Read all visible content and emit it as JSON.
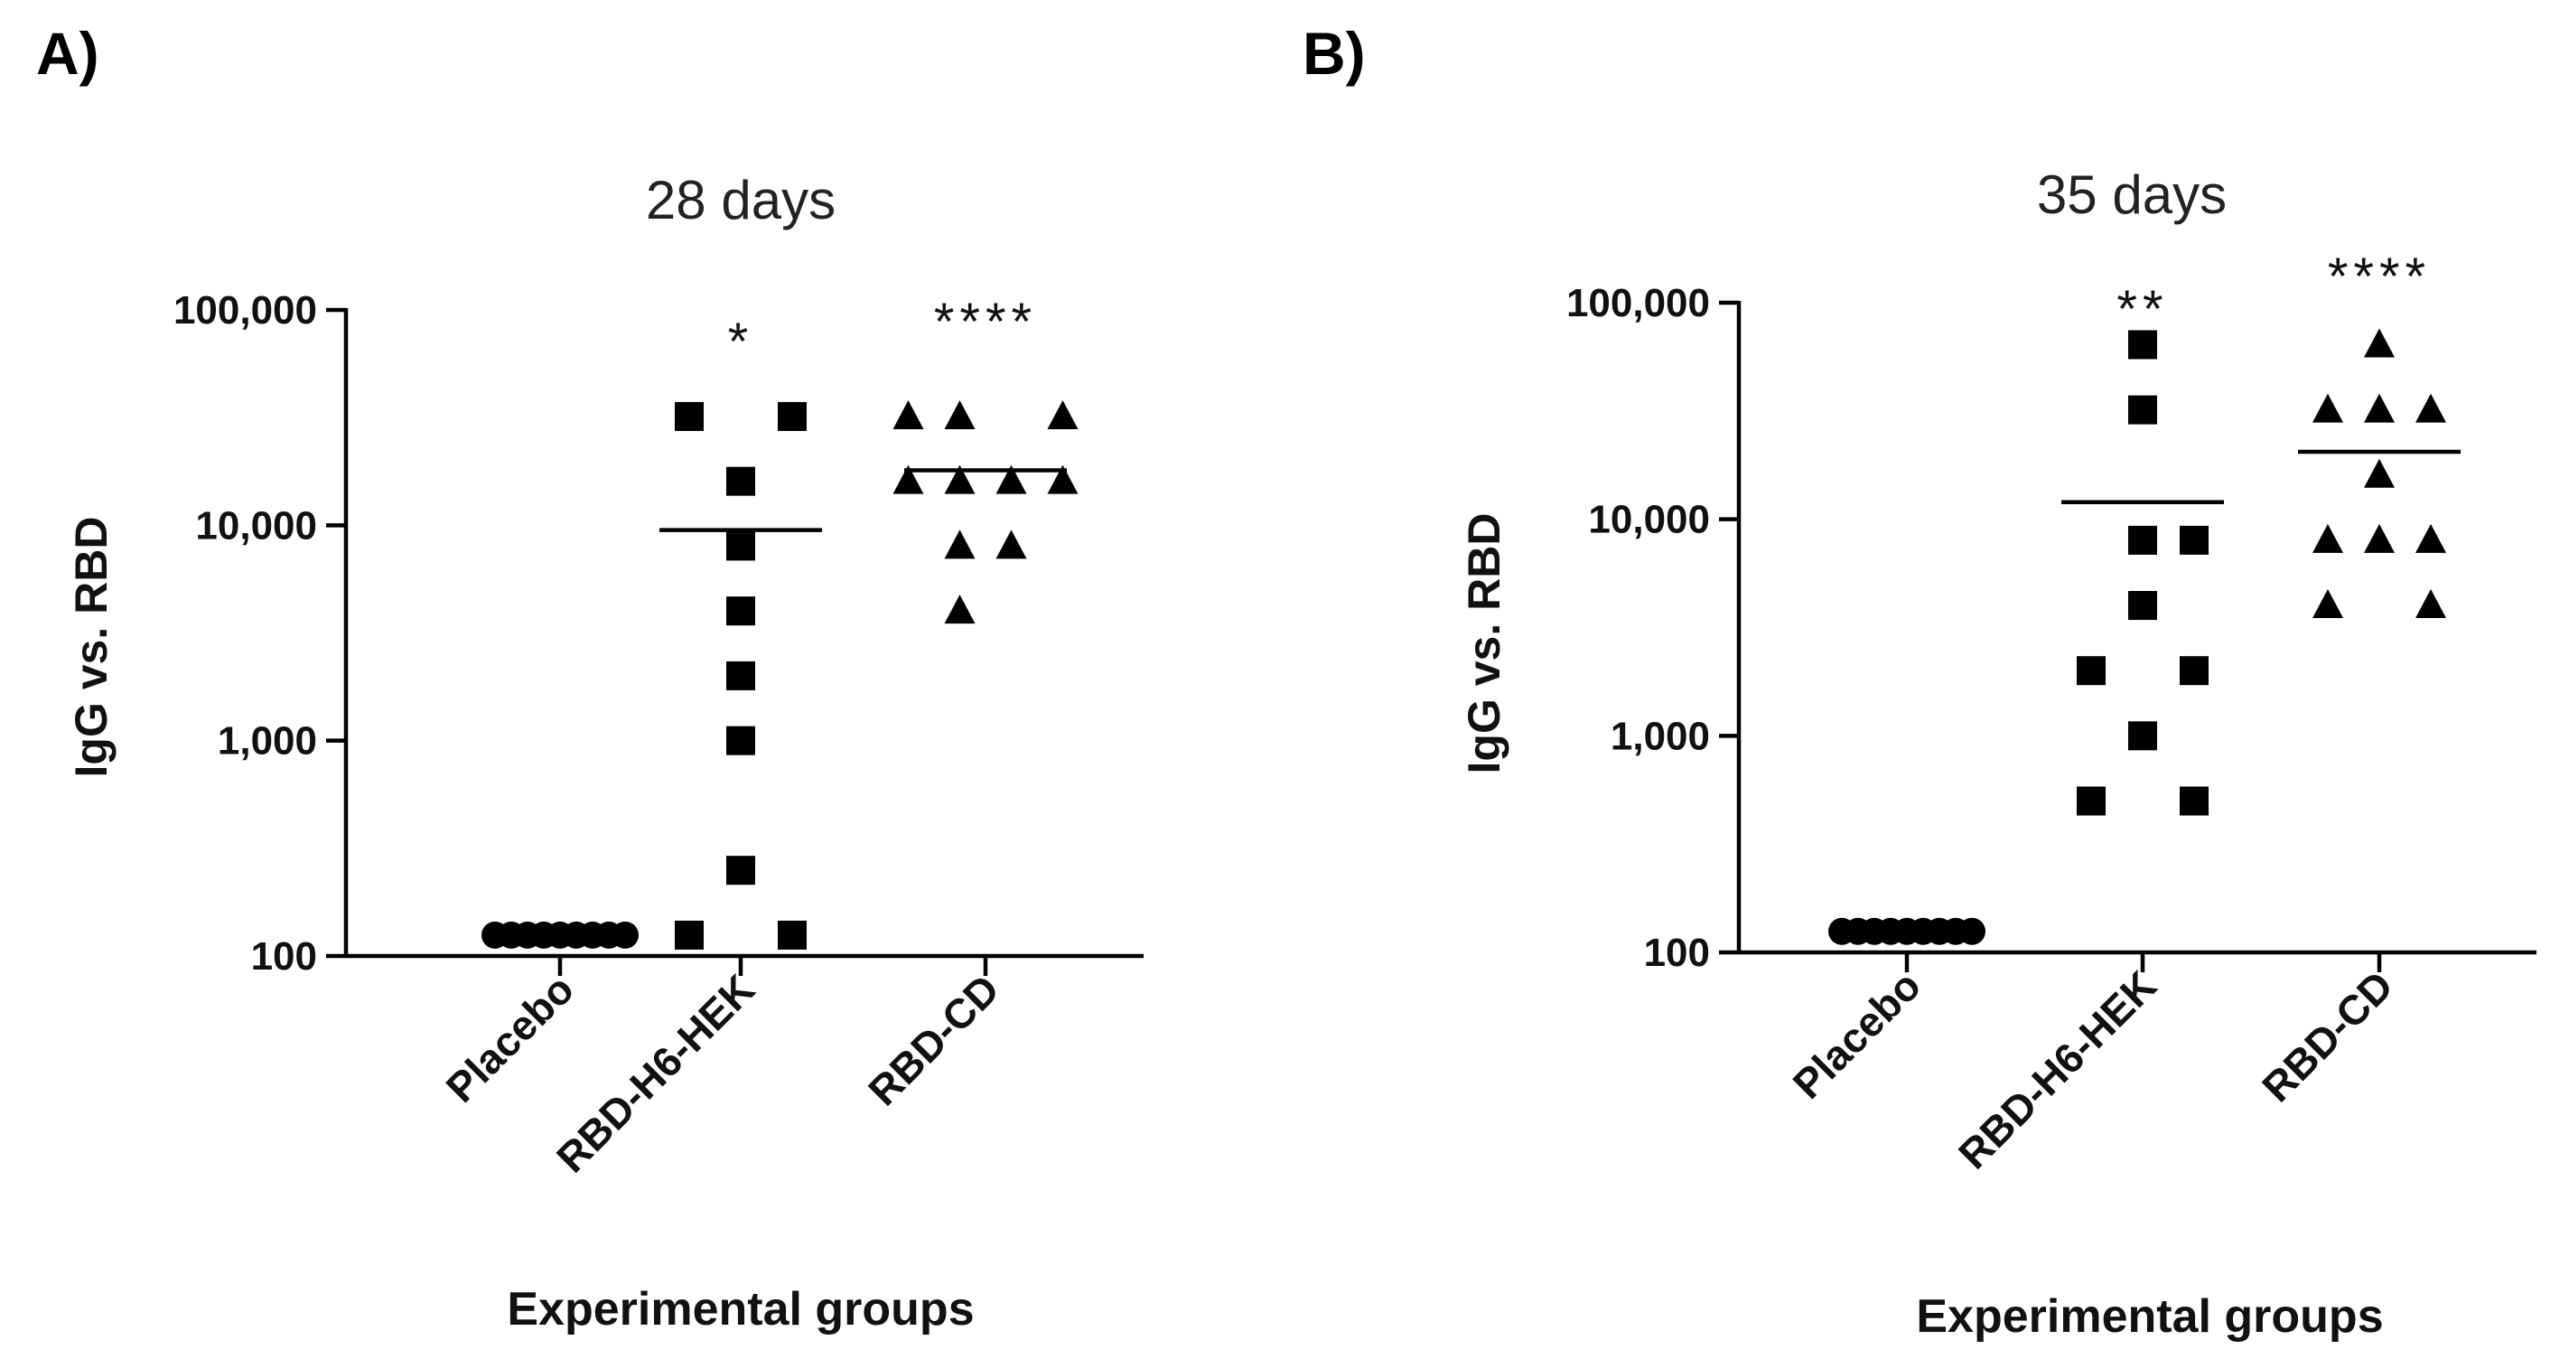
{
  "panels": [
    {
      "letter": "A)",
      "chart_data": {
        "type": "scatter",
        "title": "28 days",
        "ylabel": "IgG vs. RBD",
        "xlabel": "Experimental groups",
        "yscale": "log",
        "ylim": [
          100,
          100000
        ],
        "yticks": [
          100,
          1000,
          10000,
          100000
        ],
        "ytick_labels": [
          "100",
          "1,000",
          "10,000",
          "100,000"
        ],
        "categories": [
          "Placebo",
          "RBD-H6-HEK",
          "RBD-CD"
        ],
        "groups": [
          {
            "name": "Placebo",
            "marker": "circle",
            "points": [
              {
                "value": 125,
                "offset": -4
              },
              {
                "value": 125,
                "offset": -3
              },
              {
                "value": 125,
                "offset": -2
              },
              {
                "value": 125,
                "offset": -1
              },
              {
                "value": 125,
                "offset": 0
              },
              {
                "value": 125,
                "offset": 1
              },
              {
                "value": 125,
                "offset": 2
              },
              {
                "value": 125,
                "offset": 3
              },
              {
                "value": 125,
                "offset": 4
              }
            ],
            "mean": null,
            "significance": ""
          },
          {
            "name": "RBD-H6-HEK",
            "marker": "square",
            "points": [
              {
                "value": 32000,
                "offset": -1
              },
              {
                "value": 32000,
                "offset": 1
              },
              {
                "value": 16000,
                "offset": 0
              },
              {
                "value": 8000,
                "offset": 0
              },
              {
                "value": 4000,
                "offset": 0
              },
              {
                "value": 2000,
                "offset": 0
              },
              {
                "value": 1000,
                "offset": 0
              },
              {
                "value": 250,
                "offset": 0
              },
              {
                "value": 125,
                "offset": -1
              },
              {
                "value": 125,
                "offset": 1
              }
            ],
            "mean": 9500,
            "significance": "*"
          },
          {
            "name": "RBD-CD",
            "marker": "triangle",
            "points": [
              {
                "value": 32000,
                "offset": -1.5
              },
              {
                "value": 32000,
                "offset": -0.5
              },
              {
                "value": 32000,
                "offset": 1.5
              },
              {
                "value": 16000,
                "offset": -1.5
              },
              {
                "value": 16000,
                "offset": -0.5
              },
              {
                "value": 16000,
                "offset": 0.5
              },
              {
                "value": 16000,
                "offset": 1.5
              },
              {
                "value": 8000,
                "offset": -0.5
              },
              {
                "value": 8000,
                "offset": 0.5
              },
              {
                "value": 4000,
                "offset": -0.5
              }
            ],
            "mean": 18000,
            "significance": "****"
          }
        ]
      }
    },
    {
      "letter": "B)",
      "chart_data": {
        "type": "scatter",
        "title": "35 days",
        "ylabel": "IgG vs. RBD",
        "xlabel": "Experimental groups",
        "yscale": "log",
        "ylim": [
          100,
          100000
        ],
        "yticks": [
          100,
          1000,
          10000,
          100000
        ],
        "ytick_labels": [
          "100",
          "1,000",
          "10,000",
          "100,000"
        ],
        "categories": [
          "Placebo",
          "RBD-H6-HEK",
          "RBD-CD"
        ],
        "groups": [
          {
            "name": "Placebo",
            "marker": "circle",
            "points": [
              {
                "value": 125,
                "offset": -4
              },
              {
                "value": 125,
                "offset": -3
              },
              {
                "value": 125,
                "offset": -2
              },
              {
                "value": 125,
                "offset": -1
              },
              {
                "value": 125,
                "offset": 0
              },
              {
                "value": 125,
                "offset": 1
              },
              {
                "value": 125,
                "offset": 2
              },
              {
                "value": 125,
                "offset": 3
              },
              {
                "value": 125,
                "offset": 4
              }
            ],
            "mean": null,
            "significance": ""
          },
          {
            "name": "RBD-H6-HEK",
            "marker": "square",
            "points": [
              {
                "value": 64000,
                "offset": 0
              },
              {
                "value": 32000,
                "offset": 0
              },
              {
                "value": 8000,
                "offset": 0
              },
              {
                "value": 8000,
                "offset": 1
              },
              {
                "value": 4000,
                "offset": 0
              },
              {
                "value": 2000,
                "offset": -1
              },
              {
                "value": 2000,
                "offset": 1
              },
              {
                "value": 1000,
                "offset": 0
              },
              {
                "value": 500,
                "offset": -1
              },
              {
                "value": 500,
                "offset": 1
              }
            ],
            "mean": 12000,
            "significance": "**"
          },
          {
            "name": "RBD-CD",
            "marker": "triangle",
            "points": [
              {
                "value": 64000,
                "offset": 0
              },
              {
                "value": 32000,
                "offset": -1
              },
              {
                "value": 32000,
                "offset": 0
              },
              {
                "value": 32000,
                "offset": 1
              },
              {
                "value": 16000,
                "offset": 0
              },
              {
                "value": 8000,
                "offset": -1
              },
              {
                "value": 8000,
                "offset": 0
              },
              {
                "value": 8000,
                "offset": 1
              },
              {
                "value": 4000,
                "offset": -1
              },
              {
                "value": 4000,
                "offset": 1
              }
            ],
            "mean": 20500,
            "significance": "****"
          }
        ]
      }
    }
  ]
}
